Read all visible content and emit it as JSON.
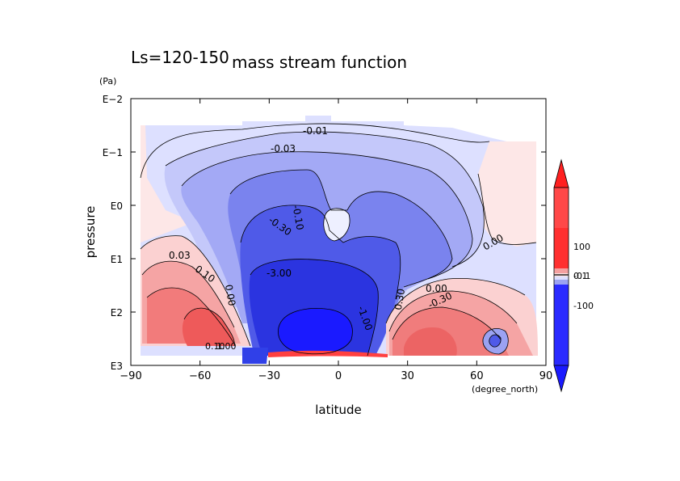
{
  "chart_data": {
    "type": "heatmap",
    "title_left": "Ls=120-150",
    "title": "mass stream function",
    "xlabel": "latitude",
    "xunit": "(degree_north)",
    "ylabel": "pressure",
    "yunit": "(Pa)",
    "xlim": [
      -90,
      90
    ],
    "x_ticks": [
      "-90",
      "-60",
      "-30",
      "0",
      "30",
      "60",
      "90"
    ],
    "y_scale": "log",
    "ylim_exponent": [
      -2,
      3
    ],
    "y_ticks": [
      "E-2",
      "E-1",
      "E0",
      "E1",
      "E2",
      "E3"
    ],
    "contour_labels": [
      "-0.01",
      "-0.03",
      "-0.10",
      "-0.30",
      "-3.00",
      "-1.00",
      "0.30",
      "-0.30",
      "0.03",
      "0.10",
      "0.00",
      "0.00",
      "0.00",
      "0.10",
      "1.00",
      "0.00"
    ],
    "colorbar": {
      "labels": [
        "100",
        "0.1",
        "-0.1",
        "-100"
      ],
      "colors": {
        "red_max": "#ff2020",
        "red_mid": "#f08080",
        "red_low": "#fde2e2",
        "blue_low": "#dde0ff",
        "blue_mid": "#9ba2f2",
        "blue_max": "#1a1aff"
      }
    }
  }
}
